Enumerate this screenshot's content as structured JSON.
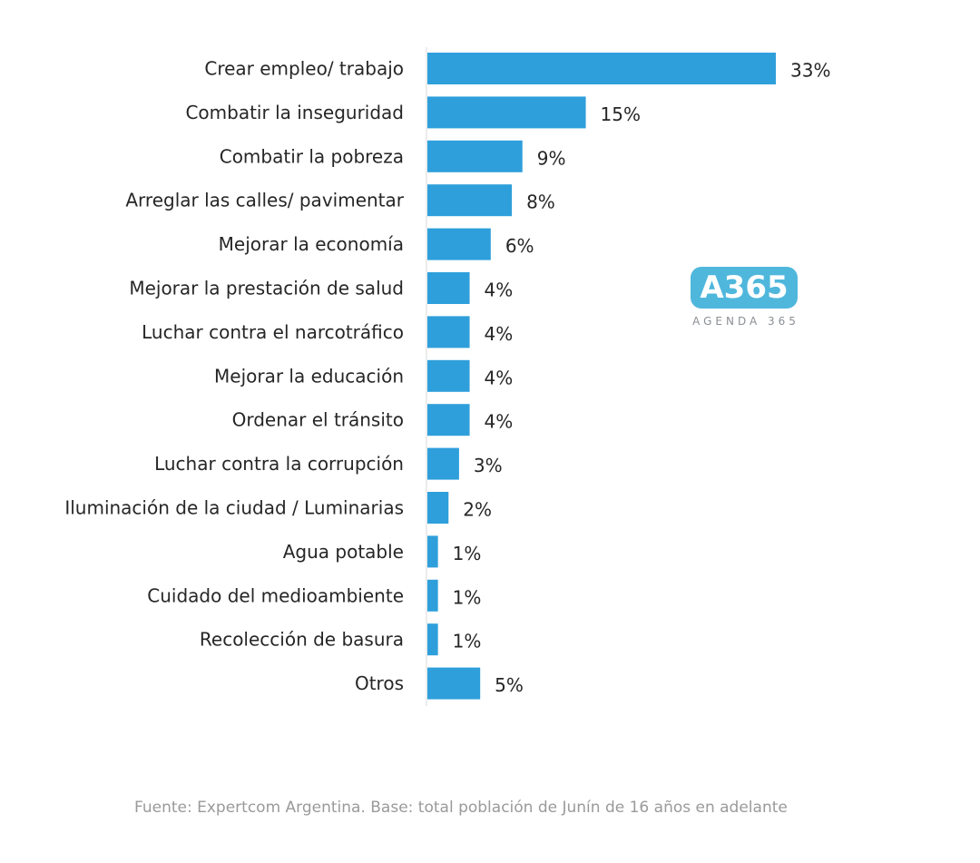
{
  "chart_data": {
    "type": "bar",
    "orientation": "horizontal",
    "categories": [
      "Crear empleo/ trabajo",
      "Combatir la inseguridad",
      "Combatir la pobreza",
      "Arreglar las calles/ pavimentar",
      "Mejorar la economía",
      "Mejorar la prestación de salud",
      "Luchar contra el narcotráfico",
      "Mejorar la educación",
      "Ordenar el tránsito",
      "Luchar contra la corrupción",
      "Iluminación de la ciudad / Luminarias",
      "Agua potable",
      "Cuidado del medioambiente",
      "Recolección de basura",
      "Otros"
    ],
    "values": [
      33,
      15,
      9,
      8,
      6,
      4,
      4,
      4,
      4,
      3,
      2,
      1,
      1,
      1,
      5
    ],
    "value_labels": [
      "33%",
      "15%",
      "9%",
      "8%",
      "6%",
      "4%",
      "4%",
      "4%",
      "4%",
      "3%",
      "2%",
      "1%",
      "1%",
      "1%",
      "5%"
    ],
    "unit": "%",
    "xlim": [
      0,
      33
    ],
    "bar_color": "#2e9fdb",
    "grid": false,
    "legend": "none"
  },
  "logo": {
    "mark": "A365",
    "subtitle": "AGENDA 365",
    "color": "#4fb7dc"
  },
  "source": "Fuente: Expertcom Argentina. Base: total población de Junín de 16 años en adelante"
}
